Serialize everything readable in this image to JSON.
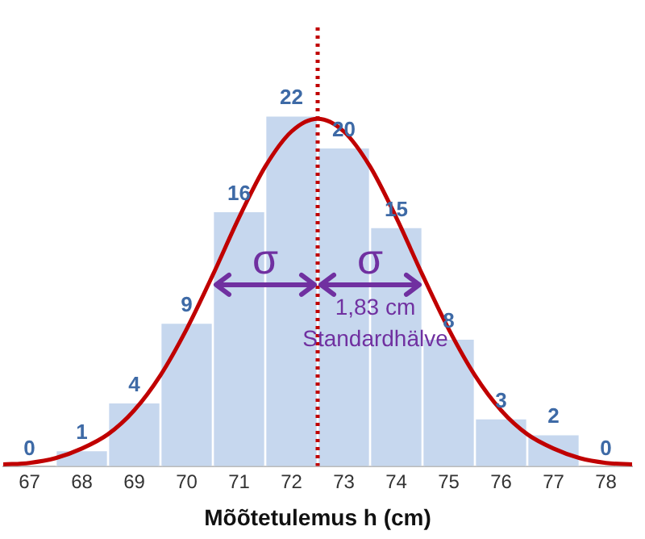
{
  "chart_data": {
    "type": "histogram",
    "xlabel": "Mõõtetulemus h (cm)",
    "bins": [
      66.5,
      67.5,
      68.5,
      69.5,
      70.5,
      71.5,
      72.5,
      73.5,
      74.5,
      75.5,
      76.5,
      77.5,
      78.5
    ],
    "values": [
      0,
      1,
      4,
      9,
      16,
      22,
      20,
      15,
      8,
      3,
      2,
      0
    ],
    "color": "#c6d7ee",
    "value_labels": [
      "0",
      "1",
      "4",
      "9",
      "16",
      "22",
      "20",
      "15",
      "8",
      "3",
      "2",
      "0"
    ],
    "series": [
      {
        "type": "line",
        "color": "#c00000",
        "x": [
          66.5,
          67,
          67.5,
          68,
          68.5,
          69,
          69.5,
          70,
          70.5,
          71,
          71.5,
          72,
          72.5,
          73,
          73.5,
          74,
          74.5,
          75,
          75.5,
          76,
          76.5,
          77,
          77.5,
          78,
          78.5
        ],
        "values": [
          0.1,
          0.2,
          0.5,
          1.1,
          2.0,
          3.5,
          5.7,
          8.6,
          12.0,
          15.6,
          18.8,
          21.0,
          21.8,
          21.0,
          18.8,
          15.6,
          12.0,
          8.6,
          5.7,
          3.5,
          2.0,
          1.1,
          0.5,
          0.2,
          0.1
        ]
      }
    ],
    "ref_lines": [
      {
        "axis": "x",
        "value": 72.5,
        "color": "#c00000",
        "line_style": "dotted"
      }
    ],
    "annotations": [
      {
        "text": "σ",
        "x": 71.5,
        "y": 12.8
      },
      {
        "text": "σ",
        "x": 73.5,
        "y": 12.8
      },
      {
        "text": "1,83 cm",
        "x": 73.6,
        "y": 9.9
      },
      {
        "text": "Standardhälve",
        "x": 73.6,
        "y": 7.9
      }
    ],
    "xlim": [
      66.5,
      78.5
    ],
    "xticks": [
      67,
      68,
      69,
      70,
      71,
      72,
      73,
      74,
      75,
      76,
      77,
      78
    ],
    "tick_labels": "x",
    "grid": false,
    "legend": false
  }
}
